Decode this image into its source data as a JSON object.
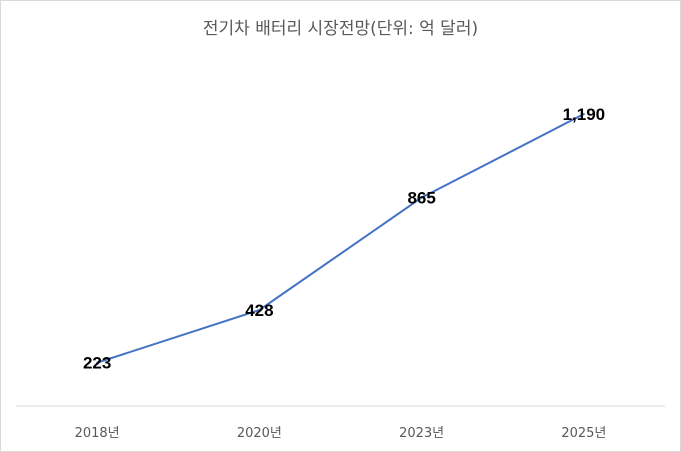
{
  "chart_data": {
    "type": "line",
    "title": "전기차 배터리 시장전망(단위: 억 달러)",
    "categories": [
      "2018년",
      "2020년",
      "2023년",
      "2025년"
    ],
    "series": [
      {
        "values": [
          223,
          428,
          865,
          1190
        ],
        "data_labels": [
          "223",
          "428",
          "865",
          "1,190"
        ],
        "color": "#4472c4"
      }
    ],
    "xlabel": "",
    "ylabel": "",
    "grid": false,
    "legend": "none"
  }
}
